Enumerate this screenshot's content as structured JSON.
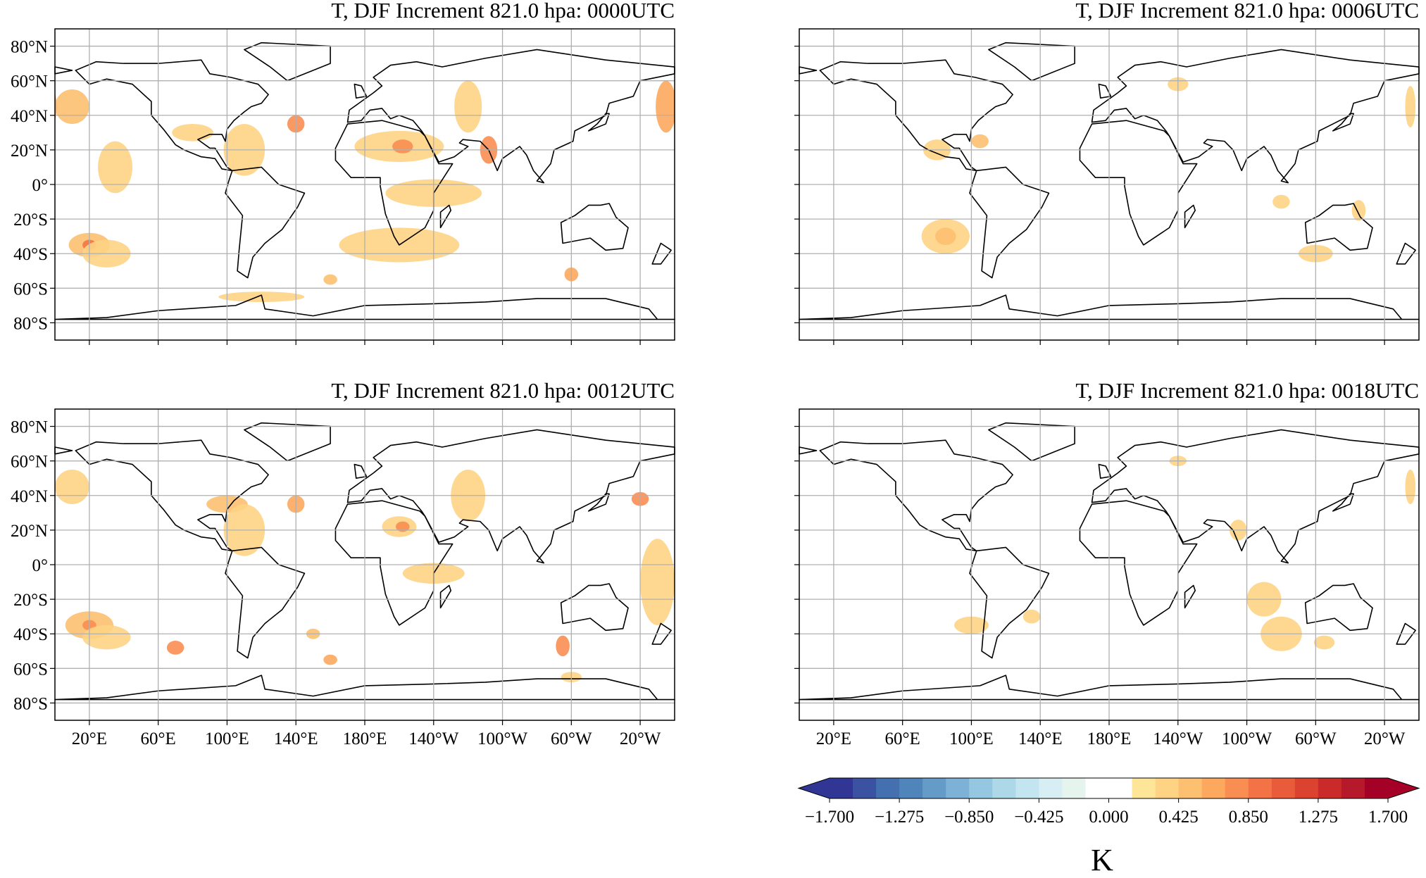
{
  "chart_data": {
    "type": "heatmap",
    "projection": "PlateCarree, central longitude 180",
    "lon_range": [
      0,
      360
    ],
    "lat_range": [
      -90,
      90
    ],
    "grid": true,
    "lat_ticks": [
      80,
      60,
      40,
      20,
      0,
      -20,
      -40,
      -60,
      -80
    ],
    "lat_tick_labels": [
      "80°N",
      "60°N",
      "40°N",
      "20°N",
      "0°",
      "20°S",
      "40°S",
      "60°S",
      "80°S"
    ],
    "lon_ticks": [
      20,
      60,
      100,
      140,
      180,
      220,
      260,
      300,
      340
    ],
    "lon_tick_labels": [
      "20°E",
      "60°E",
      "100°E",
      "140°E",
      "180°E",
      "140°W",
      "100°W",
      "60°W",
      "20°W"
    ],
    "panels": [
      {
        "title": "T, DJF Increment 821.0 hpa: 0000UTC",
        "hotspots": [
          [
            20,
            -35,
            12,
            7,
            0.5
          ],
          [
            20,
            -35,
            4,
            3,
            0.9
          ],
          [
            30,
            -40,
            14,
            8,
            0.3
          ],
          [
            200,
            22,
            26,
            9,
            0.3
          ],
          [
            202,
            22,
            6,
            4,
            0.8
          ],
          [
            220,
            -5,
            28,
            8,
            0.3
          ],
          [
            200,
            -35,
            35,
            10,
            0.3
          ],
          [
            10,
            45,
            10,
            10,
            0.5
          ],
          [
            140,
            35,
            5,
            5,
            0.8
          ],
          [
            110,
            20,
            12,
            15,
            0.4
          ],
          [
            252,
            20,
            5,
            8,
            0.8
          ],
          [
            240,
            45,
            8,
            15,
            0.4
          ],
          [
            355,
            45,
            6,
            15,
            0.6
          ],
          [
            35,
            10,
            10,
            15,
            0.3
          ],
          [
            300,
            -52,
            4,
            4,
            0.7
          ],
          [
            160,
            -55,
            4,
            3,
            0.5
          ],
          [
            120,
            -65,
            25,
            3,
            0.3
          ],
          [
            80,
            30,
            12,
            5,
            0.3
          ]
        ]
      },
      {
        "title": "T, DJF Increment 821.0 hpa: 0006UTC",
        "hotspots": [
          [
            85,
            -30,
            14,
            10,
            0.3
          ],
          [
            85,
            -30,
            6,
            5,
            0.5
          ],
          [
            300,
            -40,
            10,
            5,
            0.3
          ],
          [
            325,
            -15,
            4,
            6,
            0.3
          ],
          [
            280,
            -10,
            5,
            4,
            0.3
          ],
          [
            105,
            25,
            5,
            4,
            0.5
          ],
          [
            80,
            20,
            8,
            6,
            0.3
          ],
          [
            220,
            58,
            6,
            4,
            0.3
          ],
          [
            355,
            45,
            3,
            12,
            0.4
          ]
        ]
      },
      {
        "title": "T, DJF Increment 821.0 hpa: 0012UTC",
        "hotspots": [
          [
            20,
            -35,
            14,
            8,
            0.5
          ],
          [
            20,
            -35,
            4,
            3,
            0.8
          ],
          [
            30,
            -42,
            14,
            7,
            0.3
          ],
          [
            70,
            -48,
            5,
            4,
            0.8
          ],
          [
            200,
            22,
            10,
            6,
            0.3
          ],
          [
            202,
            22,
            4,
            3,
            0.8
          ],
          [
            220,
            -5,
            18,
            6,
            0.3
          ],
          [
            340,
            38,
            5,
            4,
            0.8
          ],
          [
            350,
            -10,
            10,
            25,
            0.3
          ],
          [
            10,
            45,
            10,
            10,
            0.4
          ],
          [
            100,
            35,
            12,
            5,
            0.5
          ],
          [
            140,
            35,
            5,
            5,
            0.7
          ],
          [
            110,
            20,
            12,
            15,
            0.4
          ],
          [
            295,
            -47,
            4,
            6,
            0.8
          ],
          [
            150,
            -40,
            4,
            3,
            0.5
          ],
          [
            160,
            -55,
            4,
            3,
            0.7
          ],
          [
            300,
            -65,
            6,
            3,
            0.4
          ],
          [
            240,
            40,
            10,
            15,
            0.3
          ]
        ]
      },
      {
        "title": "T, DJF Increment 821.0 hpa: 0018UTC",
        "hotspots": [
          [
            270,
            -20,
            10,
            10,
            0.3
          ],
          [
            280,
            -40,
            12,
            10,
            0.3
          ],
          [
            305,
            -45,
            6,
            4,
            0.3
          ],
          [
            100,
            -35,
            10,
            5,
            0.3
          ],
          [
            135,
            -30,
            5,
            4,
            0.3
          ],
          [
            255,
            20,
            5,
            6,
            0.4
          ],
          [
            220,
            60,
            5,
            3,
            0.3
          ],
          [
            355,
            45,
            3,
            10,
            0.3
          ]
        ]
      }
    ],
    "colorbar": {
      "label": "K",
      "vmin": -1.7,
      "vmax": 1.7,
      "extend": "both",
      "tick_values": [
        -1.7,
        -1.275,
        -0.85,
        -0.425,
        0,
        0.425,
        0.85,
        1.275,
        1.7
      ],
      "tick_labels": [
        "−1.700",
        "−1.275",
        "−0.850",
        "−0.425",
        "0.000",
        "0.425",
        "0.850",
        "1.275",
        "1.700"
      ],
      "colors": [
        "#313695",
        "#3B52A3",
        "#4470B0",
        "#5085BC",
        "#659BC8",
        "#7DB1D5",
        "#96C7E0",
        "#ACD8E8",
        "#C2E5EF",
        "#D6EEF4",
        "#E5F4EC",
        "#FFFFFF",
        "#FFFFFF",
        "#FEE597",
        "#FED384",
        "#FDC070",
        "#FCA85F",
        "#F98E52",
        "#F47346",
        "#E95B3B",
        "#DC4230",
        "#CA2A29",
        "#B61A2A",
        "#A50026"
      ]
    }
  }
}
